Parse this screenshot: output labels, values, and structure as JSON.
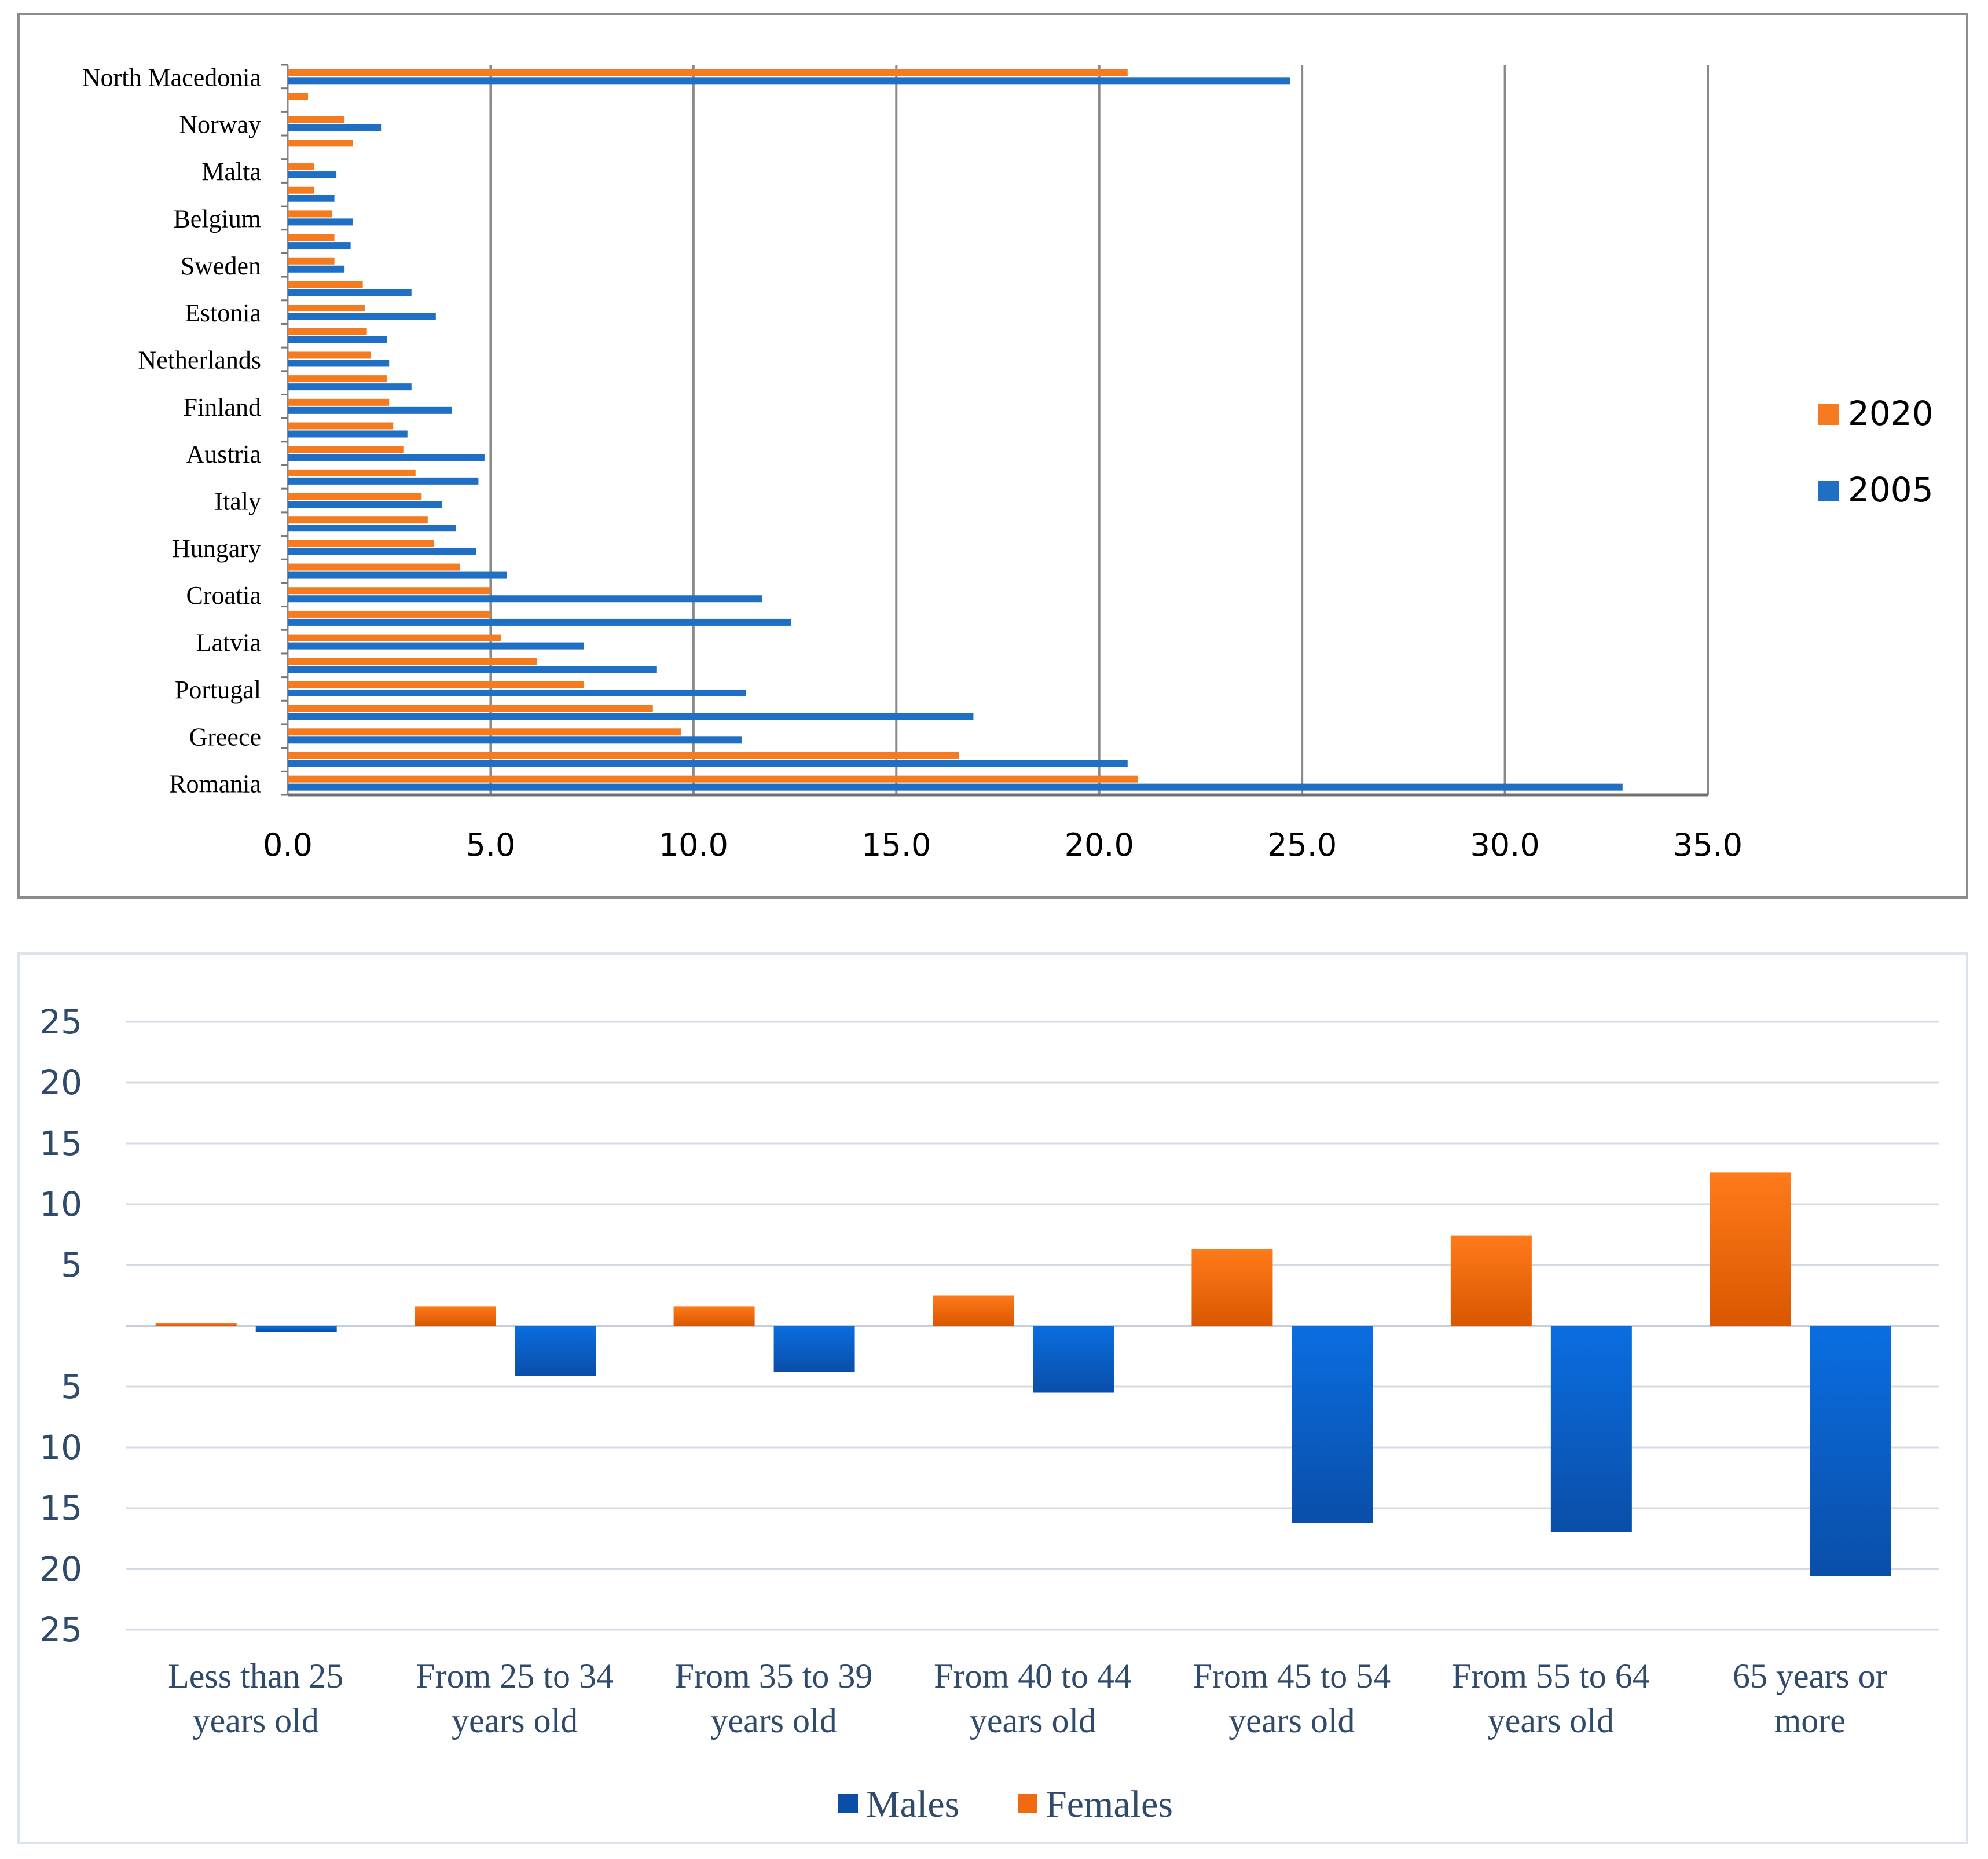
{
  "colors": {
    "orange": "#f47b20",
    "blue": "#1f6fc5",
    "female_grad_top": "#ff7a1a",
    "female_grad_bottom": "#d95700",
    "male_grad_top": "#0a6ee0",
    "male_grad_bottom": "#0a4ea8",
    "grid_dark": "#8a8a8a",
    "grid_light": "#d4dbe6",
    "axis_text_blue": "#2f4a6b"
  },
  "chart_data": [
    {
      "type": "bar",
      "orientation": "horizontal",
      "title": "",
      "xlabel": "",
      "ylabel": "",
      "xlim": [
        0,
        35
      ],
      "x_ticks": [
        "0.0",
        "5.0",
        "10.0",
        "15.0",
        "20.0",
        "25.0",
        "30.0",
        "35.0"
      ],
      "grid": true,
      "legend_position": "right",
      "category_labels": [
        "North Macedonia",
        "Norway",
        "Malta",
        "Belgium",
        "Sweden",
        "Estonia",
        "Netherlands",
        "Finland",
        "Austria",
        "Italy",
        "Hungary",
        "Croatia",
        "Latvia",
        "Portugal",
        "Greece",
        "Romania"
      ],
      "series": [
        {
          "name": "2020",
          "values": [
            20.7,
            0.5,
            1.4,
            1.6,
            0.65,
            0.65,
            1.1,
            1.15,
            1.15,
            1.85,
            1.9,
            1.95,
            2.05,
            2.45,
            2.5,
            2.6,
            2.85,
            3.15,
            3.3,
            3.45,
            3.6,
            4.25,
            5.0,
            5.0,
            5.25,
            6.15,
            7.3,
            9.0,
            9.7,
            16.55,
            20.95
          ]
        },
        {
          "name": "2005",
          "values": [
            24.7,
            0.0,
            2.3,
            0.0,
            1.2,
            1.15,
            1.6,
            1.55,
            1.4,
            3.05,
            3.65,
            2.45,
            2.5,
            3.05,
            4.05,
            2.95,
            4.85,
            4.7,
            3.8,
            4.15,
            4.65,
            5.4,
            11.7,
            12.4,
            7.3,
            9.1,
            11.3,
            16.9,
            11.2,
            20.7,
            32.9
          ]
        }
      ]
    },
    {
      "type": "bar",
      "orientation": "vertical",
      "title": "",
      "xlabel": "",
      "ylabel": "",
      "ylim": [
        -25,
        25
      ],
      "y_ticks": [
        "25",
        "20",
        "15",
        "10",
        "5",
        "",
        "5",
        "10",
        "15",
        "20",
        "25"
      ],
      "grid": true,
      "legend_position": "bottom",
      "categories": [
        [
          "Less than 25",
          "years old"
        ],
        [
          "From 25 to 34",
          "years old"
        ],
        [
          "From 35 to 39",
          "years old"
        ],
        [
          "From 40 to 44",
          "years old"
        ],
        [
          "From 45 to 54",
          "years old"
        ],
        [
          "From 55 to 64",
          "years old"
        ],
        [
          "65 years or",
          "more"
        ]
      ],
      "series": [
        {
          "name": "Females",
          "values": [
            0.2,
            1.6,
            1.6,
            2.5,
            6.3,
            7.4,
            12.6
          ]
        },
        {
          "name": "Males",
          "values": [
            -0.5,
            -4.1,
            -3.8,
            -5.5,
            -16.2,
            -17.0,
            -20.6
          ]
        }
      ],
      "legend_order": [
        "Males",
        "Females"
      ]
    }
  ]
}
